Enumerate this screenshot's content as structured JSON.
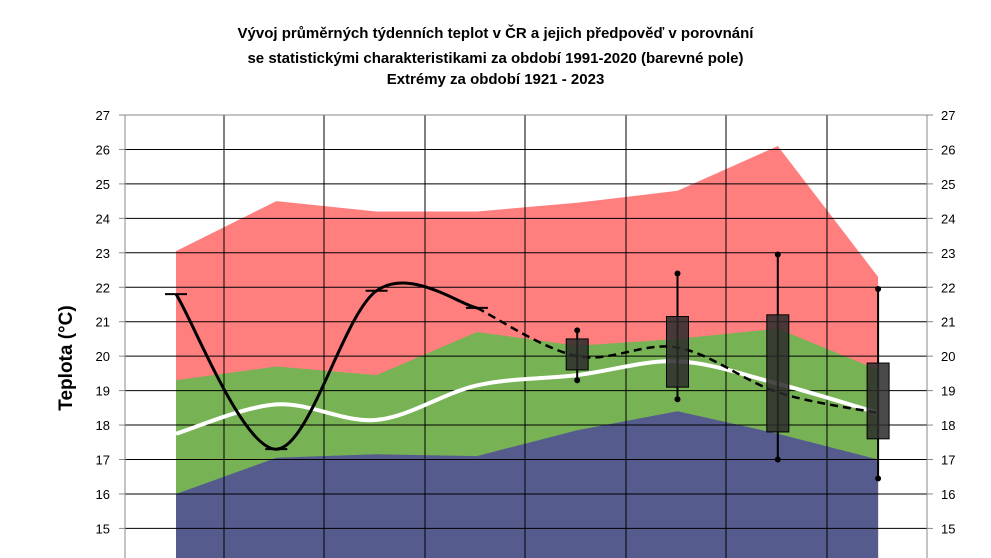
{
  "chart_data": {
    "type": "area",
    "title_lines": [
      "Vývoj průměrných týdenních teplot v ČR a jejich předpověď v porovnání",
      "se statistickými charakteristikami za období 1991-2020 (barevné pole)",
      "Extrémy za období 1921 - 2023"
    ],
    "ylabel": "Teplota (°C)",
    "ylim": [
      14,
      27
    ],
    "yticks": [
      27,
      26,
      25,
      24,
      23,
      22,
      21,
      20,
      19,
      18,
      17,
      16,
      15
    ],
    "grid": true,
    "x": [
      1,
      2,
      3,
      4,
      5,
      6,
      7,
      8
    ],
    "bands": [
      {
        "name": "extreme-max",
        "color": "#ff7f7f",
        "values": [
          23.05,
          24.5,
          24.2,
          24.2,
          24.45,
          24.8,
          26.1,
          22.3
        ]
      },
      {
        "name": "upper-normal",
        "color": "#77b255",
        "values": [
          19.3,
          19.7,
          19.45,
          20.7,
          20.3,
          20.5,
          20.8,
          19.6
        ]
      },
      {
        "name": "lower-normal",
        "color": "#565b8e",
        "values": [
          16.0,
          17.05,
          17.15,
          17.1,
          17.85,
          18.4,
          17.75,
          17.0
        ]
      }
    ],
    "mean": {
      "color": "#ffffff",
      "values": [
        17.75,
        18.6,
        18.15,
        19.15,
        19.45,
        19.85,
        19.2,
        18.35
      ]
    },
    "observed": {
      "color": "#000000",
      "values": [
        21.8,
        17.3,
        21.9,
        21.4
      ]
    },
    "forecast_median": {
      "x": [
        4,
        5,
        6,
        7,
        8
      ],
      "values": [
        21.4,
        20.0,
        20.25,
        18.95,
        18.35
      ]
    },
    "forecast_boxes": [
      {
        "x": 5,
        "min": 19.3,
        "q1": 19.6,
        "q3": 20.5,
        "max": 20.75
      },
      {
        "x": 6,
        "min": 18.75,
        "q1": 19.1,
        "q3": 21.15,
        "max": 22.4
      },
      {
        "x": 7,
        "min": 17.0,
        "q1": 17.8,
        "q3": 21.2,
        "max": 22.95
      },
      {
        "x": 8,
        "min": 16.45,
        "q1": 17.6,
        "q3": 19.8,
        "max": 21.95
      }
    ]
  }
}
